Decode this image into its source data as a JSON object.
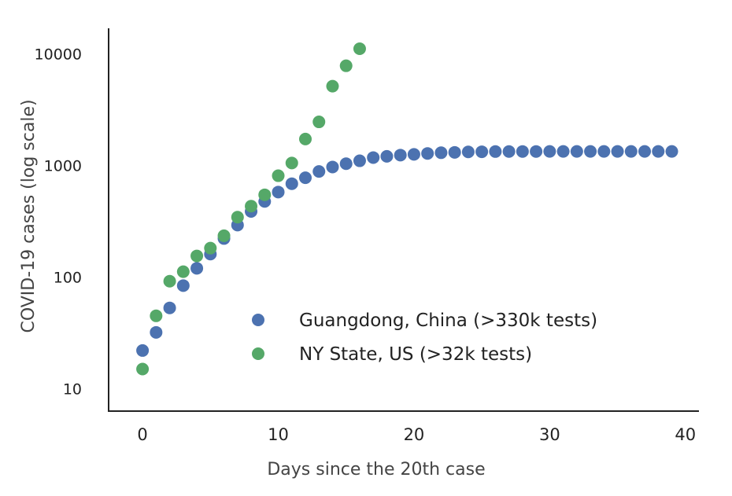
{
  "chart_data": {
    "type": "scatter",
    "xlabel": "Days since the 20th case",
    "ylabel": "COVID-19 cases (log scale)",
    "x_scale": "linear",
    "y_scale": "log",
    "xlim": [
      -2.5,
      41
    ],
    "ylim": [
      6.3,
      17000
    ],
    "x_ticks": [
      0,
      10,
      20,
      30,
      40
    ],
    "y_ticks": [
      10,
      100,
      1000,
      10000
    ],
    "grid": false,
    "legend_position": "lower-center",
    "series": [
      {
        "name": "Guangdong, China (>330k tests)",
        "color": "#4c72b0",
        "x": [
          0,
          1,
          2,
          3,
          4,
          5,
          6,
          7,
          8,
          9,
          10,
          11,
          12,
          13,
          14,
          15,
          16,
          17,
          18,
          19,
          20,
          21,
          22,
          23,
          24,
          25,
          26,
          27,
          28,
          29,
          30,
          31,
          32,
          33,
          34,
          35,
          36,
          37,
          38,
          39
        ],
        "y": [
          22,
          32,
          53,
          84,
          120,
          161,
          222,
          293,
          388,
          477,
          579,
          688,
          778,
          886,
          971,
          1040,
          1104,
          1180,
          1210,
          1241,
          1261,
          1285,
          1304,
          1314,
          1326,
          1330,
          1336,
          1337,
          1338,
          1338,
          1339,
          1339,
          1339,
          1339,
          1339,
          1339,
          1339,
          1339,
          1339,
          1339
        ]
      },
      {
        "name": "NY State, US (>32k tests)",
        "color": "#55a868",
        "x": [
          0,
          1,
          2,
          3,
          4,
          5,
          6,
          7,
          8,
          9,
          10,
          11,
          12,
          13,
          14,
          15,
          16
        ],
        "y": [
          15,
          45,
          92,
          112,
          155,
          182,
          235,
          345,
          433,
          547,
          811,
          1054,
          1729,
          2465,
          5151,
          7845,
          11154
        ]
      }
    ]
  }
}
